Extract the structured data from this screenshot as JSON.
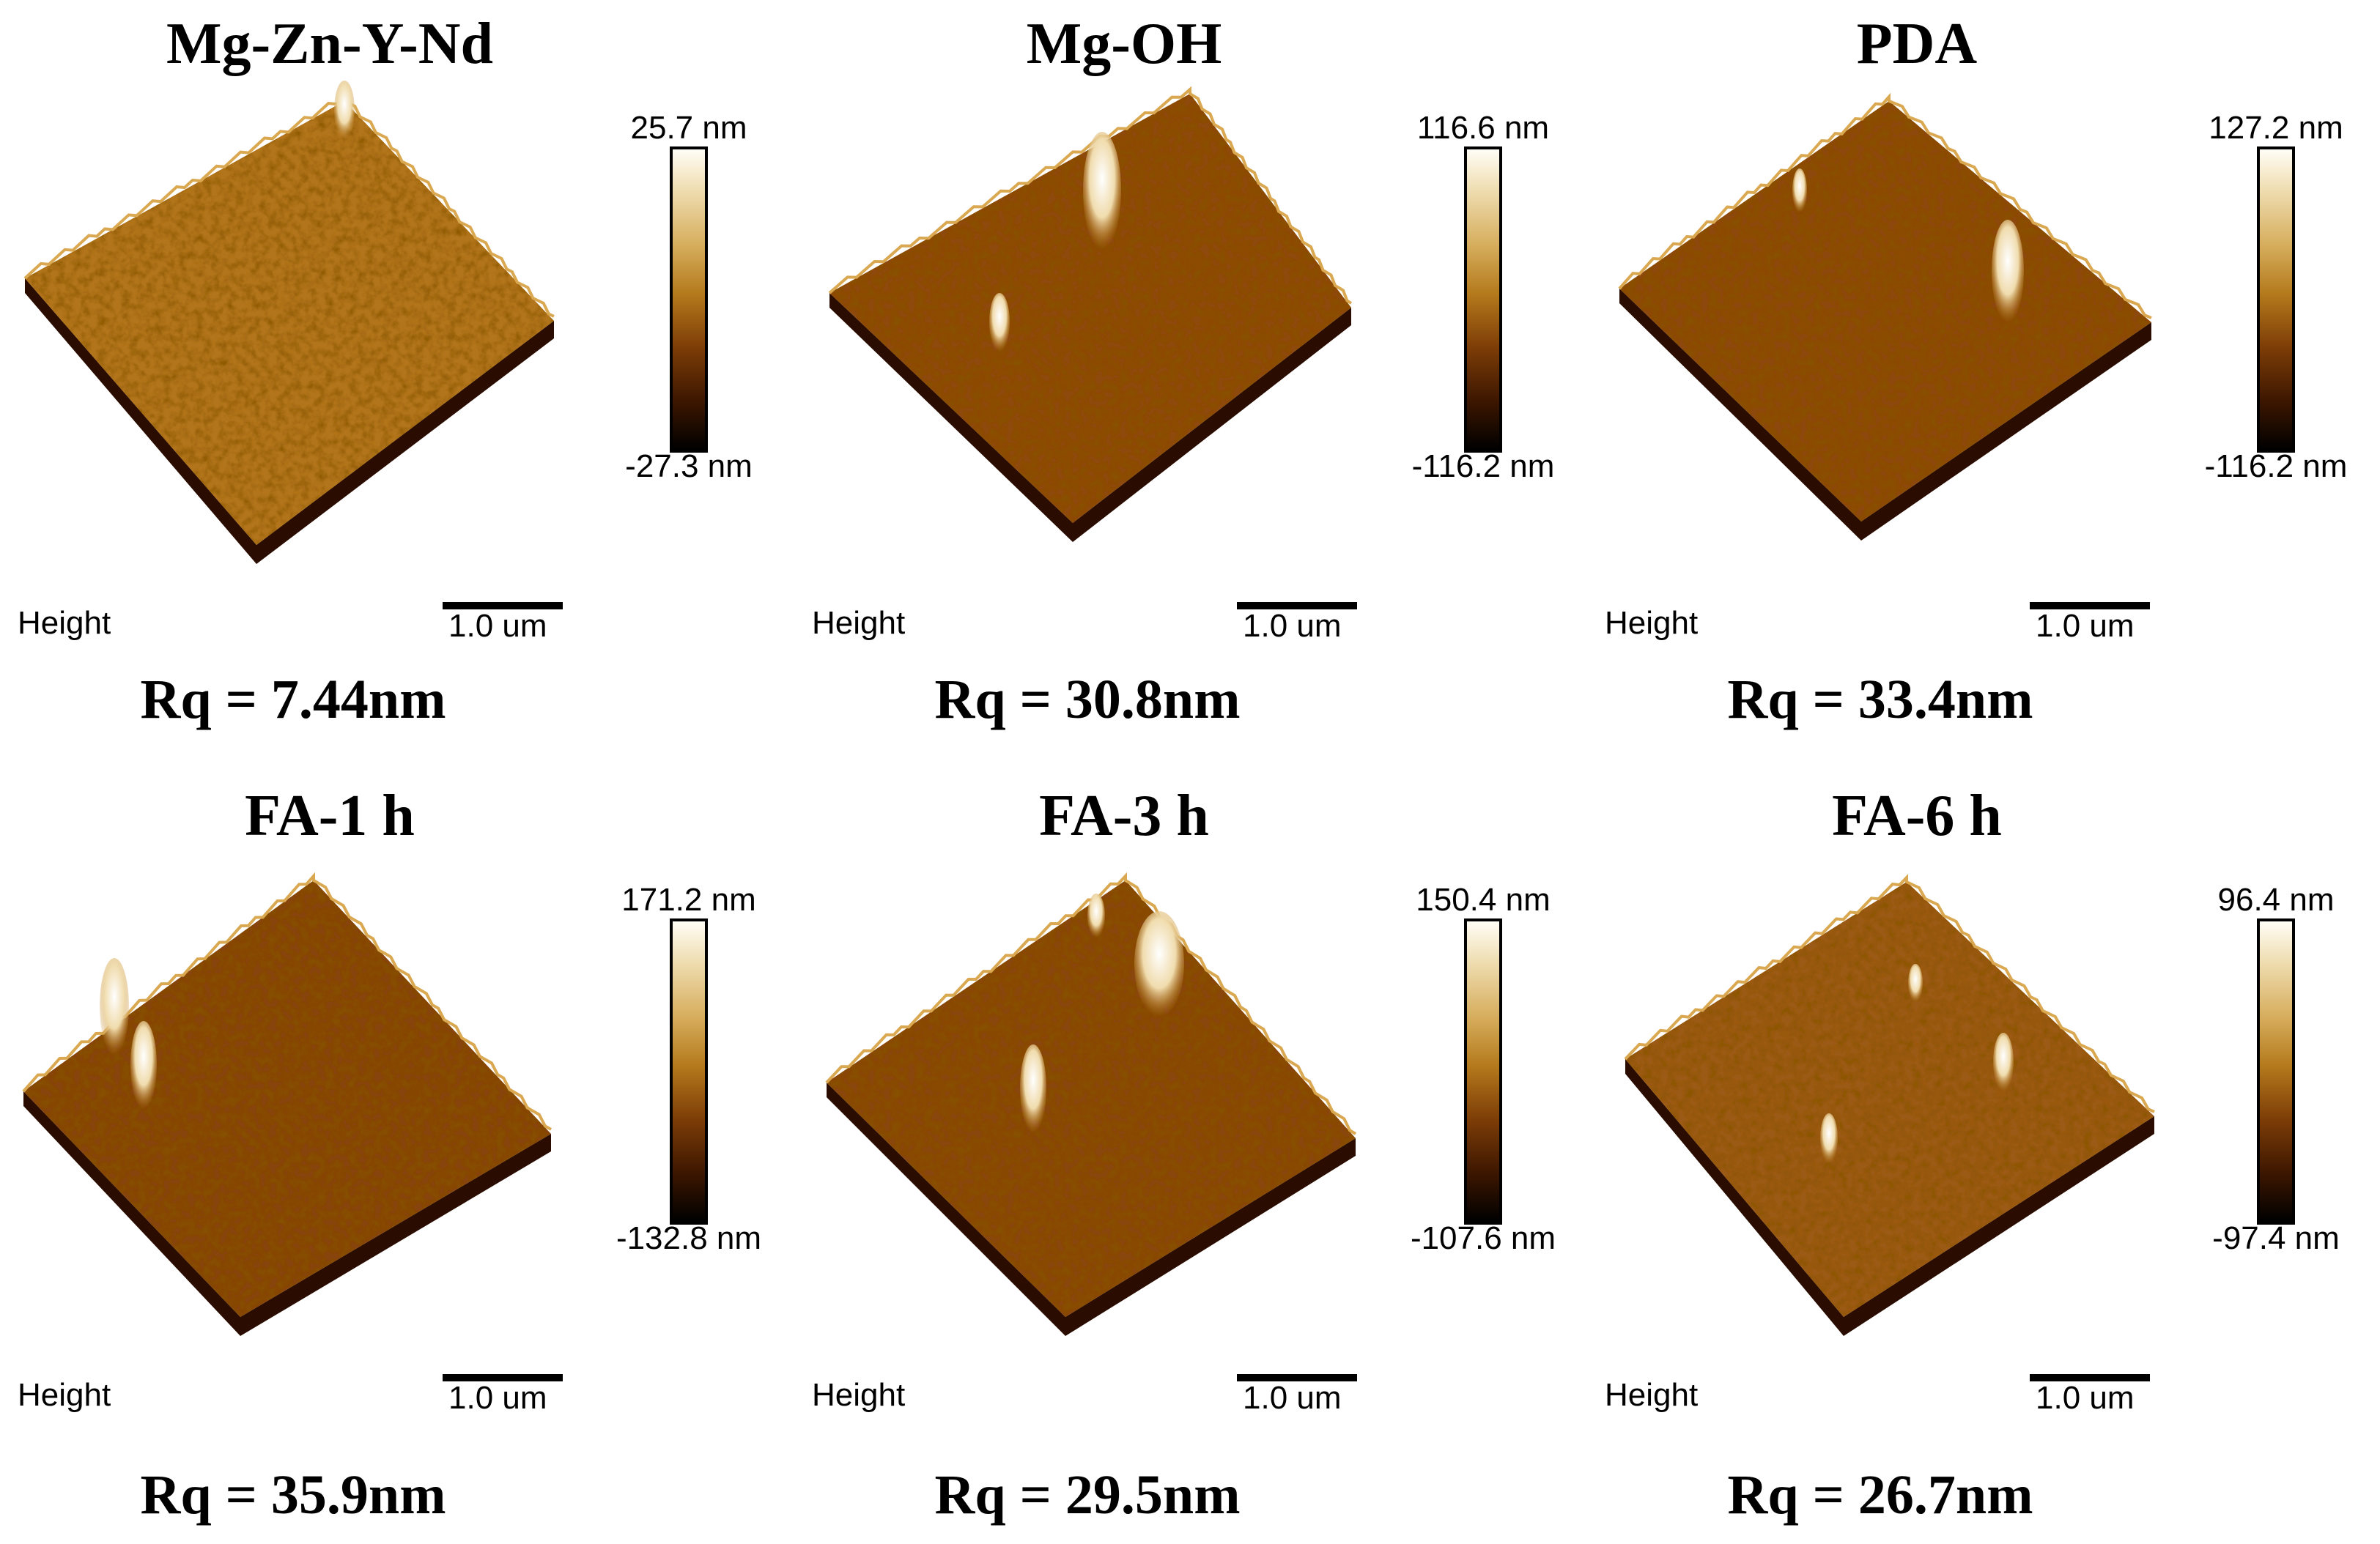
{
  "panels": [
    {
      "title": "Mg-Zn-Y-Nd",
      "cbar_max": "25.7 nm",
      "cbar_min": "-27.3 nm",
      "channel": "Height",
      "scale": "1.0 um",
      "rq": "Rq = 7.44nm"
    },
    {
      "title": "Mg-OH",
      "cbar_max": "116.6 nm",
      "cbar_min": "-116.2 nm",
      "channel": "Height",
      "scale": "1.0 um",
      "rq": "Rq = 30.8nm"
    },
    {
      "title": "PDA",
      "cbar_max": "127.2 nm",
      "cbar_min": "-116.2 nm",
      "channel": "Height",
      "scale": "1.0 um",
      "rq": "Rq = 33.4nm"
    },
    {
      "title": "FA-1 h",
      "cbar_max": "171.2 nm",
      "cbar_min": "-132.8 nm",
      "channel": "Height",
      "scale": "1.0 um",
      "rq": "Rq = 35.9nm"
    },
    {
      "title": "FA-3 h",
      "cbar_max": "150.4 nm",
      "cbar_min": "-107.6 nm",
      "channel": "Height",
      "scale": "1.0 um",
      "rq": "Rq = 29.5nm"
    },
    {
      "title": "FA-6 h",
      "cbar_max": "96.4 nm",
      "cbar_min": "-97.4 nm",
      "channel": "Height",
      "scale": "1.0 um",
      "rq": "Rq = 26.7nm"
    }
  ],
  "colors": {
    "light": "#fff6dc",
    "mid": "#b8791f",
    "dark": "#3a1402",
    "edge": "#1a0800"
  }
}
